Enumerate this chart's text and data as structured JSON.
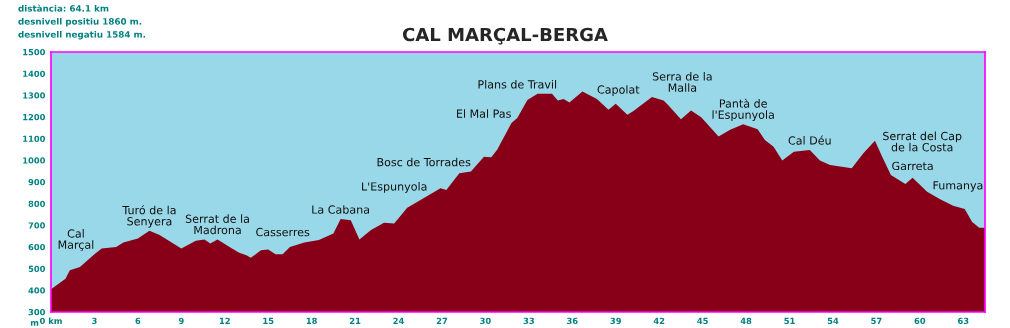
{
  "chart_data": {
    "type": "area",
    "title": "CAL MARÇAL-BERGA",
    "ylabel": "m",
    "x": [
      0,
      1,
      1.3,
      2,
      3,
      3.5,
      4.5,
      5,
      6,
      6.8,
      7.5,
      9,
      10,
      10.6,
      11,
      11.5,
      12.5,
      13,
      13.5,
      13.8,
      14.5,
      15,
      15.5,
      16,
      16.5,
      17.5,
      18.5,
      19.5,
      20.0,
      20.7,
      21.3,
      22.1,
      23.0,
      23.7,
      24.6,
      25.4,
      26.9,
      27.3,
      28.2,
      29.0,
      29.9,
      30.4,
      30.8,
      31.8,
      32.2,
      32.9,
      33.6,
      34.6,
      35.0,
      35.4,
      35.8,
      36.7,
      37.7,
      38.5,
      39.0,
      39.8,
      40.2,
      41.5,
      42.3,
      42.6,
      43.5,
      44.2,
      44.9,
      46.1,
      46.9,
      47.8,
      48.8,
      49.3,
      49.9,
      50.5,
      51.3,
      52.4,
      53.1,
      53.8,
      55.3,
      56.1,
      56.9,
      57.4,
      58.0,
      59.0,
      59.5,
      60.5,
      61.4,
      62.3,
      63.1,
      63.6,
      64.1,
      64.5
    ],
    "series": [
      {
        "color": "#870018",
        "values": [
          405,
          454,
          493,
          508,
          567,
          593,
          600,
          621,
          639,
          675,
          655,
          593,
          629,
          635,
          616,
          635,
          593,
          573,
          562,
          550,
          585,
          588,
          567,
          567,
          600,
          621,
          632,
          662,
          729,
          724,
          635,
          678,
          712,
          709,
          781,
          812,
          871,
          863,
          940,
          948,
          1017,
          1014,
          1048,
          1172,
          1195,
          1279,
          1307,
          1307,
          1276,
          1283,
          1267,
          1318,
          1283,
          1233,
          1261,
          1210,
          1226,
          1292,
          1276,
          1256,
          1190,
          1230,
          1199,
          1110,
          1141,
          1167,
          1144,
          1094,
          1063,
          999,
          1040,
          1048,
          999,
          979,
          963,
          1033,
          1090,
          1017,
          932,
          891,
          920,
          855,
          820,
          790,
          775,
          716,
          689,
          689
        ]
      }
    ],
    "xlim": [
      0,
      64.5
    ],
    "ylim": [
      300,
      1500
    ],
    "xticks": [
      {
        "value": 0,
        "label": "0 km"
      },
      3,
      6,
      9,
      12,
      15,
      18,
      21,
      24,
      27,
      30,
      33,
      36,
      39,
      42,
      45,
      48,
      51,
      54,
      57,
      60,
      63
    ],
    "yticks": [
      300,
      400,
      500,
      600,
      700,
      800,
      900,
      1000,
      1100,
      1200,
      1300,
      1400,
      1500
    ],
    "grid": false,
    "legend": false,
    "bands": [
      {
        "axis": "y",
        "from": 300,
        "to": 1500,
        "color": "#99d8e8"
      }
    ],
    "annotations": [
      "distància: 64.1 km",
      "desnivell positiu 1860 m.",
      "desnivell negatiu 1584 m.",
      {
        "text": "Cal\nMarçal",
        "x": 3,
        "y": 567
      },
      {
        "text": "Turó de la\nSenyera",
        "x": 6.8,
        "y": 675
      },
      {
        "text": "Serrat de la\nMadrona",
        "x": 11.5,
        "y": 635
      },
      {
        "text": "Casserres",
        "x": 16,
        "y": 567
      },
      {
        "text": "La Cabana",
        "x": 20.0,
        "y": 729
      },
      {
        "text": "L'Espunyola",
        "x": 23.7,
        "y": 709
      },
      {
        "text": "Bosc de Torrades",
        "x": 29.0,
        "y": 948
      },
      {
        "text": "El Mal Pas",
        "x": 31.8,
        "y": 1172
      },
      {
        "text": "Plans de Travil",
        "x": 32.2,
        "y": 1195
      },
      {
        "text": "Capolat",
        "x": 37.7,
        "y": 1283
      },
      {
        "text": "Serra de la\nMalla",
        "x": 41.5,
        "y": 1292
      },
      {
        "text": "Pantà de\nl'Espunyola",
        "x": 47.8,
        "y": 1167
      },
      {
        "text": "Cal Déu",
        "x": 52.4,
        "y": 1048
      },
      {
        "text": "Serrat del Cap\nde la Costa",
        "x": 57.4,
        "y": 1017
      },
      {
        "text": "Garreta",
        "x": 59.5,
        "y": 920
      },
      {
        "text": "Fumanya",
        "x": 63.1,
        "y": 775
      }
    ]
  }
}
